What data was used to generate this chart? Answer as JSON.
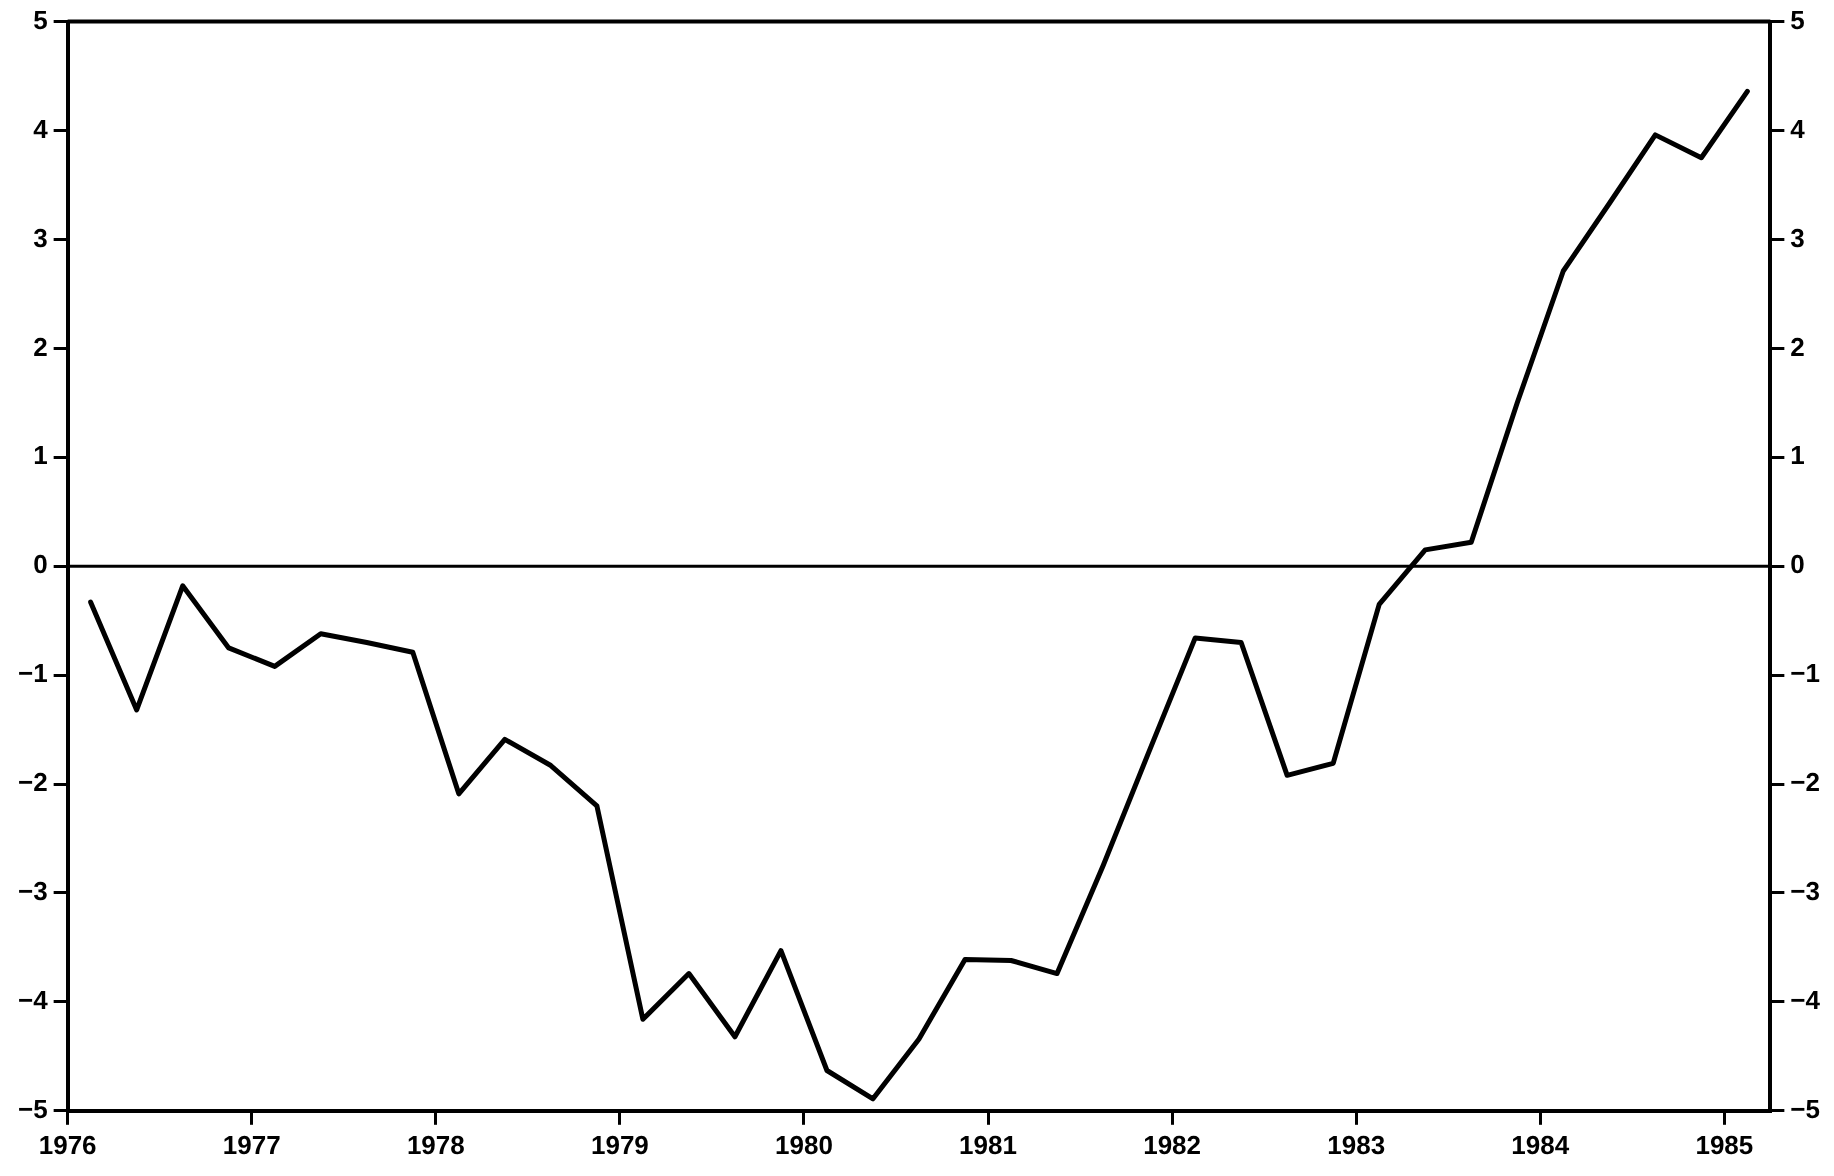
{
  "chart_data": {
    "type": "line",
    "x": [
      1976.125,
      1976.375,
      1976.625,
      1976.875,
      1977.125,
      1977.375,
      1977.625,
      1977.875,
      1978.125,
      1978.375,
      1978.625,
      1978.875,
      1979.125,
      1979.375,
      1979.625,
      1979.875,
      1980.125,
      1980.375,
      1980.625,
      1980.875,
      1981.125,
      1981.375,
      1981.625,
      1981.875,
      1982.125,
      1982.375,
      1982.625,
      1982.875,
      1983.125,
      1983.375,
      1983.625,
      1983.875,
      1984.125,
      1984.375,
      1984.625,
      1984.875,
      1985.125
    ],
    "series": [
      {
        "color": "#000000",
        "values": [
          -0.33,
          -1.32,
          -0.18,
          -0.75,
          -0.92,
          -0.62,
          -0.7,
          -0.79,
          -2.09,
          -1.59,
          -1.83,
          -2.2,
          -4.16,
          -3.74,
          -4.32,
          -3.53,
          -4.63,
          -4.89,
          -4.34,
          -3.61,
          -3.62,
          -3.74,
          -2.75,
          -1.7,
          -0.66,
          -0.7,
          -1.92,
          -1.81,
          -0.35,
          0.15,
          0.22,
          1.5,
          2.71,
          3.33,
          3.96,
          3.75,
          4.36
        ]
      }
    ],
    "xlim": [
      1976,
      1985.25
    ],
    "xticks": [
      1976,
      1977,
      1978,
      1979,
      1980,
      1981,
      1982,
      1983,
      1984,
      1985
    ],
    "ylim": [
      -5,
      5
    ],
    "yticks": [
      -5,
      -4,
      -3,
      -2,
      -1,
      0,
      1,
      2,
      3,
      4,
      5
    ],
    "y2lim": [
      -5,
      5
    ],
    "y2ticks": [
      -5,
      -4,
      -3,
      -2,
      -1,
      0,
      1,
      2,
      3,
      4,
      5
    ],
    "ref_lines": [
      {
        "axis": "y",
        "value": 0,
        "color": "#000000"
      }
    ],
    "grid": false,
    "legend": false,
    "marker": "none",
    "line_style": "solid"
  }
}
